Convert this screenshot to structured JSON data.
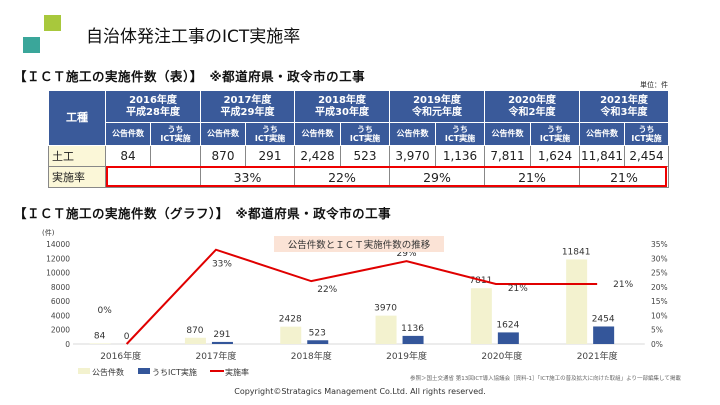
{
  "header": {
    "title": "自治体発注工事のICT実施率",
    "accent_colors": [
      "#a8c83c",
      "#3aa69a"
    ]
  },
  "table_section": {
    "heading": "【ＩＣＴ施工の実施件数（表）】　※都道府県・政令市の工事",
    "unit": "単位：件",
    "col_header": "工種",
    "years": [
      {
        "line1": "2016年度",
        "line2": "平成28年度"
      },
      {
        "line1": "2017年度",
        "line2": "平成29年度"
      },
      {
        "line1": "2018年度",
        "line2": "平成30年度"
      },
      {
        "line1": "2019年度",
        "line2": "令和元年度"
      },
      {
        "line1": "2020年度",
        "line2": "令和2年度"
      },
      {
        "line1": "2021年度",
        "line2": "令和3年度"
      }
    ],
    "sub_a": "公告件数",
    "sub_b1": "うち",
    "sub_b2": "ICT実施",
    "rows": [
      {
        "label": "土工",
        "cells": [
          "84",
          "",
          "870",
          "291",
          "2,428",
          "523",
          "3,970",
          "1,136",
          "7,811",
          "1,624",
          "11,841",
          "2,454"
        ]
      },
      {
        "label": "実施率",
        "rates": [
          "",
          "33%",
          "22%",
          "29%",
          "21%",
          "21%"
        ]
      }
    ]
  },
  "chart_section": {
    "heading": "【ＩＣＴ施工の実施件数（グラフ）】　※都道府県・政令市の工事"
  },
  "chart_data": {
    "type": "bar+line",
    "title": "公告件数とＩＣＴ実施件数の推移",
    "ylabel": "(件)",
    "categories": [
      "2016年度",
      "2017年度",
      "2018年度",
      "2019年度",
      "2020年度",
      "2021年度"
    ],
    "ylim": [
      0,
      14000
    ],
    "yticks": [
      "0",
      "2000",
      "4000",
      "6000",
      "8000",
      "10000",
      "12000",
      "14000"
    ],
    "y2lim": [
      0,
      35
    ],
    "y2ticks": [
      "0%",
      "5%",
      "10%",
      "15%",
      "20%",
      "25%",
      "30%",
      "35%"
    ],
    "series": [
      {
        "name": "公告件数",
        "type": "bar",
        "color": "#f3f2cf",
        "values": [
          84,
          870,
          2428,
          3970,
          7811,
          11841
        ]
      },
      {
        "name": "うちICT実施",
        "type": "bar",
        "color": "#34569a",
        "values": [
          0,
          291,
          523,
          1136,
          1624,
          2454
        ]
      },
      {
        "name": "実施率",
        "type": "line",
        "axis": "right",
        "color": "#e00000",
        "values": [
          0,
          33,
          22,
          29,
          21,
          21
        ],
        "labels": [
          "0%",
          "33%",
          "22%",
          "29%",
          "21%",
          "21%"
        ]
      }
    ],
    "grid": false,
    "legend": "bottom-left"
  },
  "source_note": "参照＞国土交通省 第13回ICT導入協議会［資料-1］「ICT施工の普及拡大に向けた取組」より一部編集して掲載",
  "copyright": "Copyright©Stratagics Management Co.Ltd. All rights reserved."
}
